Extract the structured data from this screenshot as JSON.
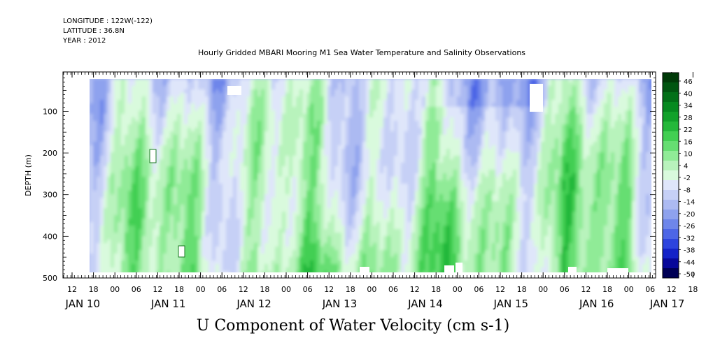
{
  "meta": {
    "longitude": "LONGITUDE : 122W(-122)",
    "latitude": "LATITUDE : 36.8N",
    "year": "YEAR : 2012"
  },
  "chart_data": {
    "type": "heatmap",
    "title": "Hourly Gridded MBARI Mooring M1 Sea Water Temperature and Salinity Observations",
    "xlabel": "U Component of Water Velocity (cm s-1)",
    "ylabel": "DEPTH (m)",
    "x_hour_ticks": [
      "12",
      "18",
      "00",
      "06",
      "12",
      "18",
      "00",
      "06",
      "12",
      "18",
      "00",
      "06",
      "12",
      "18",
      "00",
      "06",
      "12",
      "18",
      "00",
      "06",
      "12",
      "18",
      "00",
      "06",
      "12",
      "18",
      "00",
      "06",
      "12",
      "18",
      "00",
      "06"
    ],
    "x_day_labels": [
      "JAN 10",
      "JAN 11",
      "JAN 12",
      "JAN 13",
      "JAN 14",
      "JAN 15",
      "JAN 16",
      "JAN 17"
    ],
    "y_ticks": [
      "100",
      "200",
      "300",
      "400",
      "500"
    ],
    "ylim": [
      500,
      15
    ],
    "colorbar": {
      "labels": [
        "46",
        "40",
        "34",
        "28",
        "22",
        "16",
        "10",
        "4",
        "-2",
        "-8",
        "-14",
        "-20",
        "-26",
        "-32",
        "-38",
        "-44",
        "-50"
      ],
      "range": [
        -50,
        50
      ],
      "colors": [
        "#000055",
        "#08089a",
        "#1422c8",
        "#2d44de",
        "#4d66e6",
        "#6e86ea",
        "#8ea2ee",
        "#acbaf2",
        "#c6d0f6",
        "#dfe6fa",
        "#d9fadd",
        "#b8f3bc",
        "#90eb97",
        "#66de72",
        "#42cf52",
        "#24b83a",
        "#11a12a",
        "#068a20",
        "#027018",
        "#005510",
        "#003a08"
      ]
    }
  }
}
